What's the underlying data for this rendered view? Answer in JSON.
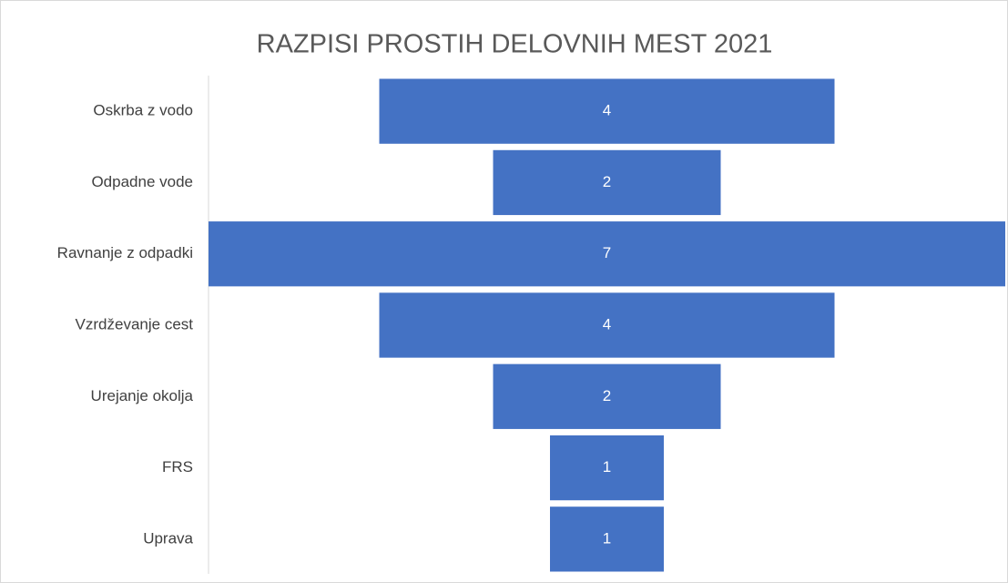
{
  "chart_data": {
    "type": "funnel",
    "title": "RAZPISI PROSTIH DELOVNIH MEST 2021",
    "categories": [
      "Oskrba z vodo",
      "Odpadne vode",
      "Ravnanje z odpadki",
      "Vzrdževanje cest",
      "Urejanje okolja",
      "FRS",
      "Uprava"
    ],
    "values": [
      4,
      2,
      7,
      4,
      2,
      1,
      1
    ],
    "color": "#4472c4"
  }
}
